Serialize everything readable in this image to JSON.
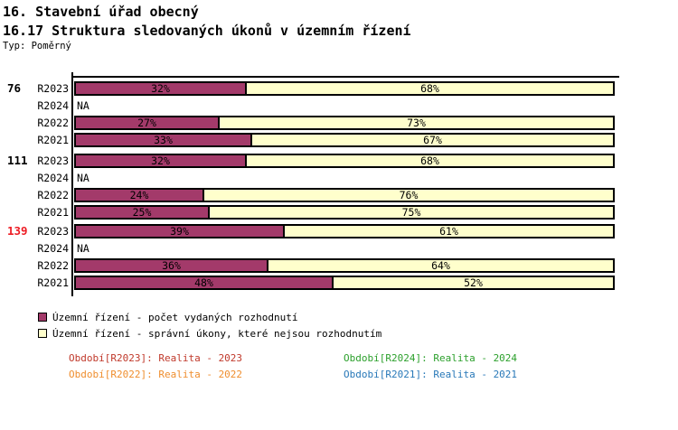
{
  "header": {
    "title1": "16. Stavební úřad obecný",
    "title2": "16.17 Struktura sledovaných úkonů v územním řízení",
    "type_label": "Typ: Poměrný"
  },
  "chart_data": {
    "type": "bar",
    "orientation": "horizontal-stacked",
    "unit": "%",
    "xlim": [
      0,
      100
    ],
    "na_label": "NA",
    "series_names": [
      "Územní řízení - počet vydaných rozhodnutí",
      "Územní řízení - správní úkony, které nejsou rozhodnutím"
    ],
    "colors": {
      "decisions": "#A33A6A",
      "other": "#FFFFCC",
      "na_text": "#000000"
    },
    "groups": [
      {
        "label": "76",
        "label_color": "#000000",
        "rows": [
          {
            "period": "R2023",
            "values": [
              32,
              68
            ]
          },
          {
            "period": "R2024",
            "values": null
          },
          {
            "period": "R2022",
            "values": [
              27,
              73
            ]
          },
          {
            "period": "R2021",
            "values": [
              33,
              67
            ]
          }
        ]
      },
      {
        "label": "111",
        "label_color": "#000000",
        "rows": [
          {
            "period": "R2023",
            "values": [
              32,
              68
            ]
          },
          {
            "period": "R2024",
            "values": null
          },
          {
            "period": "R2022",
            "values": [
              24,
              76
            ]
          },
          {
            "period": "R2021",
            "values": [
              25,
              75
            ]
          }
        ]
      },
      {
        "label": "139",
        "label_color": "#ED1C24",
        "rows": [
          {
            "period": "R2023",
            "values": [
              39,
              61
            ]
          },
          {
            "period": "R2024",
            "values": null
          },
          {
            "period": "R2022",
            "values": [
              36,
              64
            ]
          },
          {
            "period": "R2021",
            "values": [
              48,
              52
            ]
          }
        ]
      }
    ]
  },
  "legend": {
    "items": [
      {
        "label": "Územní řízení - počet vydaných rozhodnutí",
        "color": "#A33A6A"
      },
      {
        "label": "Územní řízení - správní úkony, které nejsou rozhodnutím",
        "color": "#FFFFCC"
      }
    ]
  },
  "captions": {
    "items": [
      {
        "label": "Období[R2023]: Realita - 2023",
        "color": "#C0392B"
      },
      {
        "label": "Období[R2024]: Realita - 2024",
        "color": "#2CA02C"
      },
      {
        "label": "Období[R2022]: Realita - 2022",
        "color": "#EF8E2E"
      },
      {
        "label": "Období[R2021]: Realita - 2021",
        "color": "#2878B8"
      }
    ]
  }
}
